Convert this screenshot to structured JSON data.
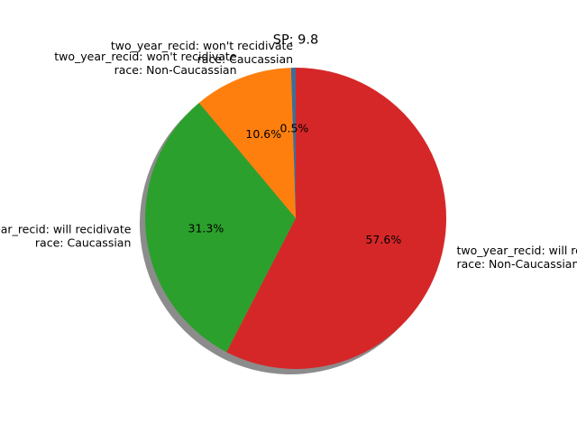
{
  "chart_data": {
    "type": "pie",
    "title": "SP: 9.8",
    "shadow": true,
    "start_angle_deg": 90,
    "direction": "counterclockwise",
    "slices": [
      {
        "label_lines": [
          "two_year_recid: won't recidivate",
          "race: Caucassian"
        ],
        "value": 0.5,
        "pct_text": "0.5%",
        "color": "#3b6e99"
      },
      {
        "label_lines": [
          "two_year_recid: won't recidivate",
          "race: Non-Caucassian"
        ],
        "value": 10.6,
        "pct_text": "10.6%",
        "color": "#ff7f0e"
      },
      {
        "label_lines": [
          "two_year_recid: will recidivate",
          "race: Caucassian"
        ],
        "value": 31.3,
        "pct_text": "31.3%",
        "color": "#2ca02c"
      },
      {
        "label_lines": [
          "two_year_recid: will recidivate",
          "race: Non-Caucassian"
        ],
        "value": 57.6,
        "pct_text": "57.6%",
        "color": "#d62728"
      }
    ]
  }
}
